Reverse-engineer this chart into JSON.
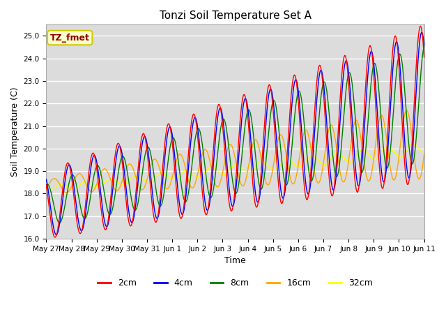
{
  "title": "Tonzi Soil Temperature Set A",
  "xlabel": "Time",
  "ylabel": "Soil Temperature (C)",
  "ylim": [
    16.0,
    25.5
  ],
  "yticks": [
    16.0,
    17.0,
    18.0,
    19.0,
    20.0,
    21.0,
    22.0,
    23.0,
    24.0,
    25.0
  ],
  "xtick_labels": [
    "May 27",
    "May 28",
    "May 29",
    "May 30",
    "May 31",
    "Jun 1",
    "Jun 2",
    "Jun 3",
    "Jun 4",
    "Jun 5",
    "Jun 6",
    "Jun 7",
    "Jun 8",
    "Jun 9",
    "Jun 10",
    "Jun 11"
  ],
  "series_colors": [
    "red",
    "blue",
    "green",
    "orange",
    "yellow"
  ],
  "series_labels": [
    "2cm",
    "4cm",
    "8cm",
    "16cm",
    "32cm"
  ],
  "annotation_text": "TZ_fmet",
  "annotation_bg": "#FFFFCC",
  "annotation_border": "#CCCC00",
  "bg_color": "#DCDCDC",
  "grid_color": "white",
  "title_fontsize": 11,
  "label_fontsize": 9,
  "tick_fontsize": 7.5,
  "legend_fontsize": 9
}
